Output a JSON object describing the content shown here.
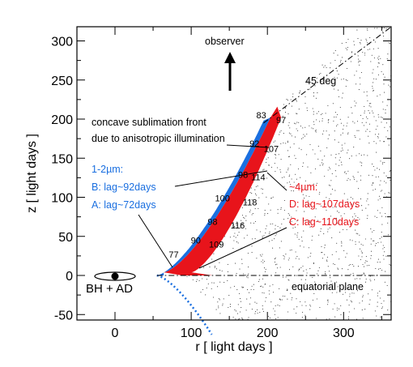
{
  "axes": {
    "xlabel": "r  [ light days ]",
    "ylabel": "z  [ light days ]",
    "x_ticks": [
      "0",
      "100",
      "200",
      "300"
    ],
    "y_ticks": [
      "-50",
      "0",
      "50",
      "100",
      "150",
      "200",
      "250",
      "300"
    ],
    "xlim": [
      -50,
      360
    ],
    "ylim": [
      -55,
      305
    ]
  },
  "labels": {
    "observer": "observer",
    "angle": "45 deg",
    "front_line1": "concave sublimation front",
    "front_line2": "due to anisotropic illumination",
    "nir_band": "1-2µm:",
    "nir_b": "B: lag~92days",
    "nir_a": "A: lag~72days",
    "mir_band": "~4µm:",
    "mir_d": "D: lag~107days",
    "mir_c": "C: lag~110days",
    "bh": "BH + AD",
    "plane": "equatorial plane"
  },
  "lag_labels": [
    {
      "text": "83",
      "r": 192,
      "z": 205
    },
    {
      "text": "97",
      "r": 218,
      "z": 199
    },
    {
      "text": "92",
      "r": 183,
      "z": 169
    },
    {
      "text": "107",
      "r": 205,
      "z": 162
    },
    {
      "text": "98",
      "r": 168,
      "z": 129
    },
    {
      "text": "114",
      "r": 188,
      "z": 126
    },
    {
      "text": "100",
      "r": 141,
      "z": 99
    },
    {
      "text": "118",
      "r": 177,
      "z": 94
    },
    {
      "text": "98",
      "r": 128,
      "z": 69
    },
    {
      "text": "116",
      "r": 161,
      "z": 64
    },
    {
      "text": "90",
      "r": 106,
      "z": 45
    },
    {
      "text": "109",
      "r": 133,
      "z": 40
    },
    {
      "text": "77",
      "r": 77,
      "z": 27
    }
  ],
  "colors": {
    "blue": "#1a6fe0",
    "red": "#e8141b",
    "ink": "#000000"
  }
}
